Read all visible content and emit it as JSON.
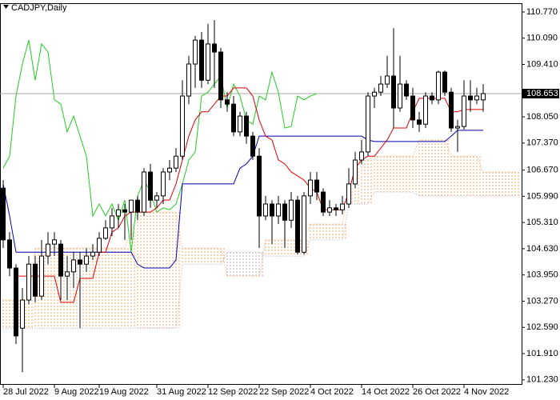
{
  "chart_data": {
    "type": "candlestick",
    "title": "CADJPY,Daily",
    "categories": [
      "28 Jul 2022",
      null,
      null,
      null,
      null,
      null,
      null,
      null,
      "9 Aug 2022",
      null,
      null,
      null,
      null,
      null,
      null,
      "19 Aug 2022",
      null,
      null,
      null,
      null,
      null,
      null,
      null,
      null,
      "31 Aug 2022",
      null,
      null,
      null,
      null,
      null,
      null,
      null,
      "12 Sep 2022",
      null,
      null,
      null,
      null,
      null,
      null,
      null,
      "22 Sep 2022",
      null,
      null,
      null,
      null,
      null,
      null,
      null,
      "4 Oct 2022",
      null,
      null,
      null,
      null,
      null,
      null,
      null,
      "14 Oct 2022",
      null,
      null,
      null,
      null,
      null,
      null,
      null,
      "26 Oct 2022",
      null,
      null,
      null,
      null,
      null,
      null,
      null,
      "4 Nov 2022",
      null,
      null,
      null,
      null,
      null,
      null,
      null,
      null
    ],
    "open": [
      106.2,
      104.86,
      104.13,
      102.57,
      103.3,
      104.23,
      103.4,
      104.44,
      104.75,
      104.75,
      103.92,
      104.03,
      104.34,
      104.23,
      104.44,
      104.54,
      104.9,
      105.17,
      105.48,
      105.64,
      105.58,
      105.89,
      105.58,
      106.62,
      105.89,
      106.0,
      106.62,
      106.72,
      107.03,
      108.59,
      109.42,
      110.04,
      109.0,
      109.94,
      109.73,
      108.49,
      108.38,
      107.66,
      108.07,
      107.55,
      107.03,
      105.48,
      105.79,
      105.48,
      105.79,
      105.37,
      105.89,
      104.54,
      106.0,
      106.41,
      106.1,
      105.58,
      105.69,
      105.64,
      105.79,
      106.31,
      106.93,
      107.14,
      108.59,
      108.69,
      108.9,
      109.11,
      108.28,
      108.9,
      108.59,
      107.97,
      107.86,
      108.59,
      108.49,
      109.21,
      108.69,
      107.76,
      107.8,
      108.59,
      108.49,
      108.49,
      null,
      null,
      null,
      null,
      null
    ],
    "high": [
      106.41,
      105.06,
      104.23,
      103.61,
      104.44,
      104.44,
      104.86,
      105.06,
      105.06,
      104.86,
      104.44,
      104.54,
      104.54,
      104.65,
      104.75,
      105.06,
      105.37,
      105.69,
      105.79,
      105.79,
      105.89,
      106.0,
      106.72,
      106.83,
      106.1,
      106.72,
      106.93,
      107.24,
      109.0,
      109.63,
      110.15,
      110.25,
      110.46,
      110.56,
      109.84,
      108.69,
      108.59,
      108.18,
      108.18,
      107.66,
      107.24,
      106.0,
      105.89,
      106.0,
      105.89,
      106.1,
      106.0,
      106.1,
      106.62,
      106.62,
      106.2,
      105.89,
      105.79,
      106.0,
      106.72,
      107.14,
      107.45,
      108.69,
      108.8,
      109.11,
      109.63,
      110.35,
      109.63,
      109.0,
      108.8,
      108.18,
      108.69,
      108.69,
      109.25,
      109.25,
      108.8,
      107.97,
      109.0,
      109.0,
      108.8,
      108.9,
      null,
      null,
      null,
      null,
      null
    ],
    "low": [
      104.65,
      103.92,
      102.16,
      101.43,
      103.19,
      103.24,
      103.3,
      104.23,
      104.44,
      103.3,
      103.3,
      103.61,
      102.57,
      104.03,
      104.34,
      104.44,
      104.86,
      104.96,
      105.17,
      104.86,
      104.86,
      105.37,
      105.48,
      105.69,
      105.69,
      105.79,
      106.41,
      106.62,
      106.93,
      108.38,
      108.8,
      108.8,
      108.9,
      108.8,
      108.28,
      108.18,
      107.55,
      107.55,
      107.35,
      106.93,
      104.65,
      105.37,
      104.75,
      105.27,
      104.65,
      105.17,
      104.48,
      104.48,
      105.79,
      105.89,
      105.48,
      105.48,
      105.48,
      105.52,
      105.69,
      106.2,
      106.83,
      107.03,
      108.28,
      108.59,
      108.8,
      107.76,
      108.18,
      108.49,
      107.76,
      107.66,
      107.76,
      108.38,
      108.38,
      108.59,
      107.66,
      107.14,
      107.72,
      108.18,
      108.38,
      108.18,
      null,
      null,
      null,
      null,
      null
    ],
    "close": [
      104.86,
      104.13,
      102.37,
      103.3,
      104.23,
      103.4,
      104.44,
      104.75,
      104.86,
      103.92,
      104.03,
      104.34,
      104.23,
      104.44,
      104.54,
      104.9,
      105.17,
      105.48,
      105.64,
      105.58,
      105.89,
      105.58,
      106.62,
      105.89,
      106.0,
      106.62,
      106.72,
      107.03,
      108.59,
      109.42,
      110.04,
      109.0,
      109.94,
      109.73,
      108.49,
      108.38,
      107.66,
      108.07,
      107.55,
      107.03,
      105.48,
      105.79,
      105.48,
      105.79,
      105.37,
      105.89,
      104.54,
      106.0,
      106.41,
      106.1,
      105.58,
      105.69,
      105.64,
      105.79,
      106.31,
      106.93,
      107.14,
      108.59,
      108.69,
      108.9,
      109.11,
      108.28,
      108.9,
      108.59,
      107.97,
      107.86,
      108.59,
      108.49,
      109.21,
      108.69,
      107.76,
      107.8,
      108.59,
      108.49,
      108.59,
      108.653,
      null,
      null,
      null,
      null,
      null
    ],
    "bull_color": "#ffffff",
    "bear_color": "#000000",
    "tenkan": {
      "color": "#dd0000",
      "values": [
        null,
        null,
        103.92,
        103.92,
        103.92,
        103.92,
        103.92,
        103.92,
        103.92,
        103.24,
        103.24,
        103.24,
        103.86,
        103.86,
        103.86,
        104.54,
        104.54,
        105.06,
        105.17,
        105.48,
        105.58,
        105.58,
        105.58,
        105.58,
        105.69,
        105.89,
        105.89,
        106.31,
        106.93,
        107.55,
        107.97,
        108.18,
        108.18,
        108.38,
        108.59,
        108.59,
        108.8,
        108.8,
        108.8,
        108.59,
        107.97,
        107.55,
        107.45,
        106.93,
        106.83,
        106.62,
        106.52,
        106.41,
        106.2,
        106.1,
        105.64,
        105.64,
        105.64,
        105.64,
        106.1,
        106.72,
        106.93,
        107.03,
        107.03,
        107.24,
        107.45,
        107.76,
        107.76,
        107.76,
        108.18,
        108.53,
        108.53,
        108.53,
        108.53,
        108.53,
        108.18,
        108.18,
        108.24,
        108.24,
        108.24,
        108.24,
        null,
        null,
        null,
        null,
        null
      ]
    },
    "kijun": {
      "color": "#0000bb",
      "values": [
        106.31,
        105.48,
        104.54,
        104.54,
        104.54,
        104.54,
        104.54,
        104.54,
        104.54,
        104.54,
        104.54,
        104.54,
        104.54,
        104.54,
        104.54,
        104.54,
        104.54,
        104.54,
        104.54,
        104.54,
        104.54,
        104.23,
        104.13,
        104.13,
        104.13,
        104.13,
        104.13,
        104.34,
        106.31,
        106.31,
        106.31,
        106.31,
        106.31,
        106.31,
        106.31,
        106.31,
        106.31,
        106.72,
        106.83,
        107.03,
        107.55,
        107.55,
        107.55,
        107.55,
        107.55,
        107.55,
        107.55,
        107.55,
        107.55,
        107.55,
        107.55,
        107.55,
        107.55,
        107.55,
        107.55,
        107.55,
        107.55,
        107.45,
        107.41,
        107.41,
        107.41,
        107.41,
        107.41,
        107.41,
        107.41,
        107.41,
        107.41,
        107.41,
        107.41,
        107.41,
        107.55,
        107.7,
        107.7,
        107.7,
        107.7,
        107.7,
        null,
        null,
        null,
        null,
        null
      ]
    },
    "chikou": {
      "color": "#22cc22",
      "values": [
        106.72,
        107.03,
        108.59,
        109.42,
        110.04,
        109.0,
        109.94,
        109.73,
        108.49,
        108.38,
        107.66,
        108.07,
        107.55,
        107.03,
        105.48,
        105.79,
        105.48,
        105.79,
        105.37,
        105.89,
        104.54,
        106.0,
        106.41,
        106.1,
        105.58,
        105.69,
        105.64,
        105.79,
        106.31,
        106.93,
        107.14,
        108.59,
        108.69,
        108.9,
        109.11,
        108.28,
        108.9,
        108.59,
        107.97,
        107.86,
        108.59,
        108.49,
        109.21,
        108.69,
        107.76,
        107.8,
        108.59,
        108.49,
        108.59,
        108.653,
        null,
        null,
        null,
        null,
        null,
        null,
        null,
        null,
        null,
        null,
        null,
        null,
        null,
        null,
        null,
        null,
        null,
        null,
        null,
        null,
        null,
        null,
        null,
        null,
        null,
        null,
        null,
        null,
        null,
        null,
        null
      ]
    },
    "senkou_a": {
      "color": "#f4a460",
      "values": [
        103.3,
        103.3,
        103.3,
        103.3,
        103.3,
        104.65,
        104.65,
        104.65,
        104.65,
        104.65,
        104.65,
        104.65,
        104.65,
        104.65,
        104.65,
        104.65,
        104.65,
        104.65,
        104.65,
        104.65,
        105.06,
        105.58,
        105.58,
        105.58,
        105.58,
        105.58,
        105.58,
        105.58,
        104.65,
        104.65,
        104.65,
        104.65,
        104.65,
        104.65,
        104.65,
        103.92,
        103.92,
        103.92,
        103.92,
        103.92,
        103.92,
        104.86,
        104.86,
        104.86,
        104.86,
        104.86,
        104.86,
        104.86,
        105.27,
        105.27,
        105.27,
        105.27,
        105.27,
        105.27,
        106.2,
        106.72,
        106.93,
        106.93,
        107.03,
        107.03,
        107.03,
        107.03,
        107.03,
        107.03,
        107.03,
        107.45,
        107.45,
        107.45,
        107.45,
        107.45,
        107.03,
        107.03,
        107.03,
        107.03,
        107.03,
        106.62,
        106.62,
        106.62,
        106.62,
        106.62,
        106.62
      ]
    },
    "senkou_b": {
      "color": "#b9a6b9",
      "values": [
        102.57,
        102.57,
        102.57,
        102.57,
        102.57,
        102.57,
        102.57,
        102.57,
        102.57,
        102.57,
        102.57,
        102.57,
        102.57,
        102.57,
        102.57,
        102.57,
        102.57,
        102.57,
        102.57,
        102.57,
        102.57,
        102.57,
        102.57,
        102.57,
        102.57,
        102.57,
        102.57,
        102.57,
        104.23,
        104.23,
        104.23,
        104.23,
        104.23,
        104.23,
        104.23,
        104.54,
        104.54,
        104.54,
        104.54,
        104.54,
        104.54,
        104.44,
        104.44,
        104.44,
        104.44,
        104.44,
        104.44,
        104.44,
        104.86,
        104.86,
        104.86,
        104.86,
        104.86,
        104.86,
        105.79,
        105.79,
        105.79,
        105.79,
        106.1,
        106.1,
        106.1,
        106.1,
        106.1,
        106.1,
        106.1,
        106.0,
        106.0,
        106.0,
        106.0,
        106.0,
        106.0,
        106.0,
        106.0,
        106.0,
        106.0,
        106.0,
        106.0,
        106.0,
        106.0,
        106.0,
        106.0
      ]
    },
    "current_price": 108.653,
    "ylim": [
      101.06,
      111.08
    ],
    "yticks": [
      {
        "value": 110.77,
        "label": "110.770"
      },
      {
        "value": 110.09,
        "label": "110.090"
      },
      {
        "value": 109.41,
        "label": "109.410"
      },
      {
        "value": 108.05,
        "label": "108.050"
      },
      {
        "value": 107.37,
        "label": "107.370"
      },
      {
        "value": 106.67,
        "label": "106.670"
      },
      {
        "value": 105.99,
        "label": "105.990"
      },
      {
        "value": 105.31,
        "label": "105.310"
      },
      {
        "value": 104.63,
        "label": "104.630"
      },
      {
        "value": 103.95,
        "label": "103.950"
      },
      {
        "value": 103.27,
        "label": "103.270"
      },
      {
        "value": 102.59,
        "label": "102.590"
      },
      {
        "value": 101.91,
        "label": "101.910"
      },
      {
        "value": 101.23,
        "label": "101.230"
      }
    ]
  }
}
